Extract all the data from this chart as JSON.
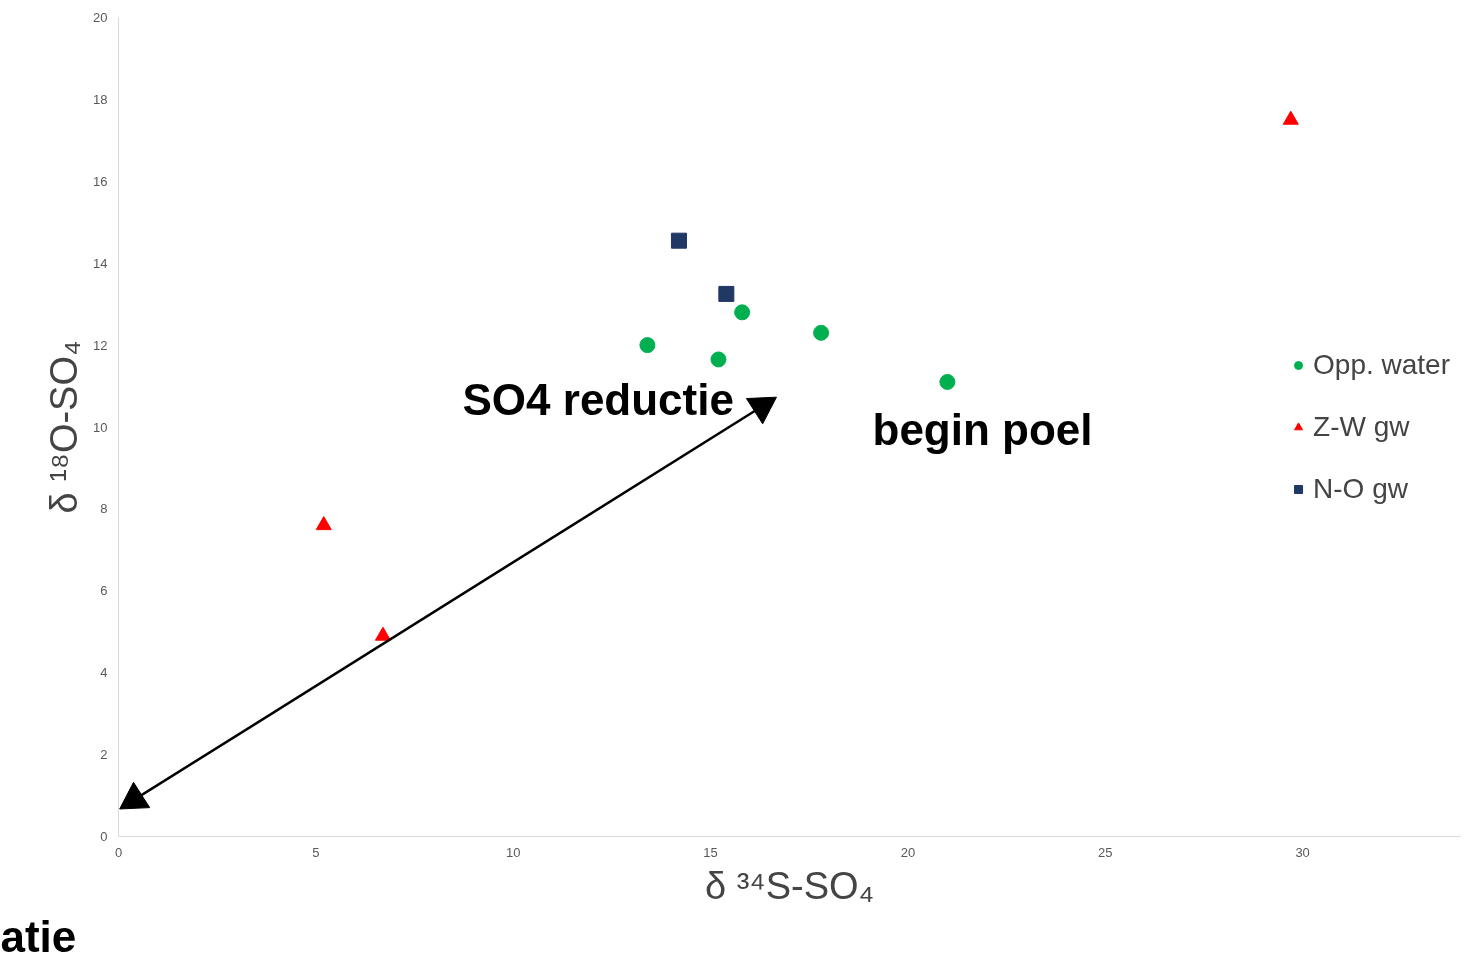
{
  "chart_data": {
    "type": "scatter",
    "xlabel": "δ ³⁴S-SO₄",
    "ylabel": "δ ¹⁸O-SO₄",
    "xlim": [
      0,
      34
    ],
    "xticks": [
      0,
      5,
      10,
      15,
      20,
      25,
      30
    ],
    "ylim": [
      0,
      20
    ],
    "yticks": [
      0,
      2,
      4,
      6,
      8,
      10,
      12,
      14,
      16,
      18,
      20
    ],
    "grid": false,
    "legend": "right",
    "series": [
      {
        "name": "Opp. water",
        "color": "#00b050",
        "marker": "circle",
        "x": [
          13.4,
          15.2,
          15.8,
          17.8,
          21.0
        ],
        "values": [
          12.0,
          11.65,
          12.8,
          12.3,
          11.1
        ]
      },
      {
        "name": "Z-W gw",
        "color": "#ff0000",
        "marker": "triangle",
        "x": [
          5.2,
          6.7,
          29.7
        ],
        "values": [
          7.6,
          4.9,
          17.5
        ]
      },
      {
        "name": "N-O gw",
        "color": "#1f3864",
        "marker": "square",
        "x": [
          14.2,
          15.4
        ],
        "values": [
          14.55,
          13.25
        ]
      },
      {
        "type": "line",
        "color": "#000000",
        "marker": "triangle",
        "x": [
          0.4,
          16.3
        ],
        "values": [
          0.9,
          10.5
        ]
      }
    ],
    "annotations": [
      "SO4 reductie",
      "begin poel",
      "atie"
    ]
  }
}
